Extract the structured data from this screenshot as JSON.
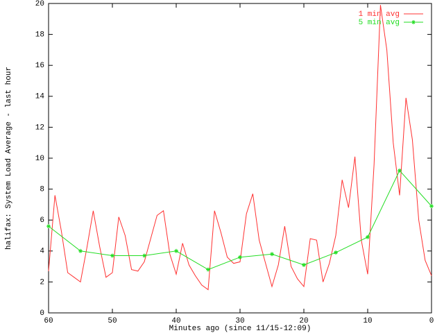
{
  "chart_data": {
    "type": "line",
    "ylabel": "halifax: System Load Average - last hour",
    "xlabel": "Minutes ago (since 11/15-12:09)",
    "xlim": [
      60,
      0
    ],
    "xticks": [
      60,
      50,
      40,
      30,
      20,
      10,
      0
    ],
    "ylim": [
      0,
      20
    ],
    "yticks": [
      0,
      2,
      4,
      6,
      8,
      10,
      12,
      14,
      16,
      18,
      20
    ],
    "legend": "upper right",
    "series": [
      {
        "name": "1 min avg",
        "color": "#ff3030",
        "markers": false,
        "x": [
          60,
          59,
          58,
          57,
          56,
          55,
          54,
          53,
          52,
          51,
          50,
          49,
          48,
          47,
          46,
          45,
          44,
          43,
          42,
          41,
          40,
          39,
          38,
          37,
          36,
          35,
          34,
          33,
          32,
          31,
          30,
          29,
          28,
          27,
          26,
          25,
          24,
          23,
          22,
          21,
          20,
          19,
          18,
          17,
          16,
          15,
          14,
          13,
          12,
          11,
          10,
          9,
          8,
          7,
          6,
          5,
          4,
          3,
          2,
          1,
          0
        ],
        "values": [
          2.7,
          7.6,
          5.3,
          2.6,
          2.3,
          2.0,
          4.2,
          6.6,
          4.3,
          2.3,
          2.6,
          6.2,
          5.0,
          2.8,
          2.7,
          3.3,
          4.8,
          6.3,
          6.6,
          3.8,
          2.5,
          4.5,
          3.1,
          2.4,
          1.8,
          1.5,
          6.6,
          5.2,
          3.6,
          3.2,
          3.3,
          6.4,
          7.7,
          4.7,
          3.2,
          1.7,
          3.1,
          5.6,
          3.0,
          2.2,
          1.7,
          4.8,
          4.7,
          2.0,
          3.2,
          5.0,
          8.6,
          6.8,
          10.1,
          4.7,
          2.5,
          9.6,
          19.9,
          17.0,
          11.0,
          7.6,
          13.9,
          11.2,
          6.0,
          3.4,
          2.4
        ]
      },
      {
        "name": "5 min avg",
        "color": "#22dd22",
        "markers": true,
        "x": [
          60,
          55,
          50,
          45,
          40,
          35,
          30,
          25,
          20,
          15,
          10,
          5,
          0
        ],
        "values": [
          5.6,
          4.0,
          3.7,
          3.7,
          4.0,
          2.8,
          3.6,
          3.8,
          3.1,
          3.9,
          4.9,
          9.2,
          6.9
        ]
      }
    ]
  }
}
